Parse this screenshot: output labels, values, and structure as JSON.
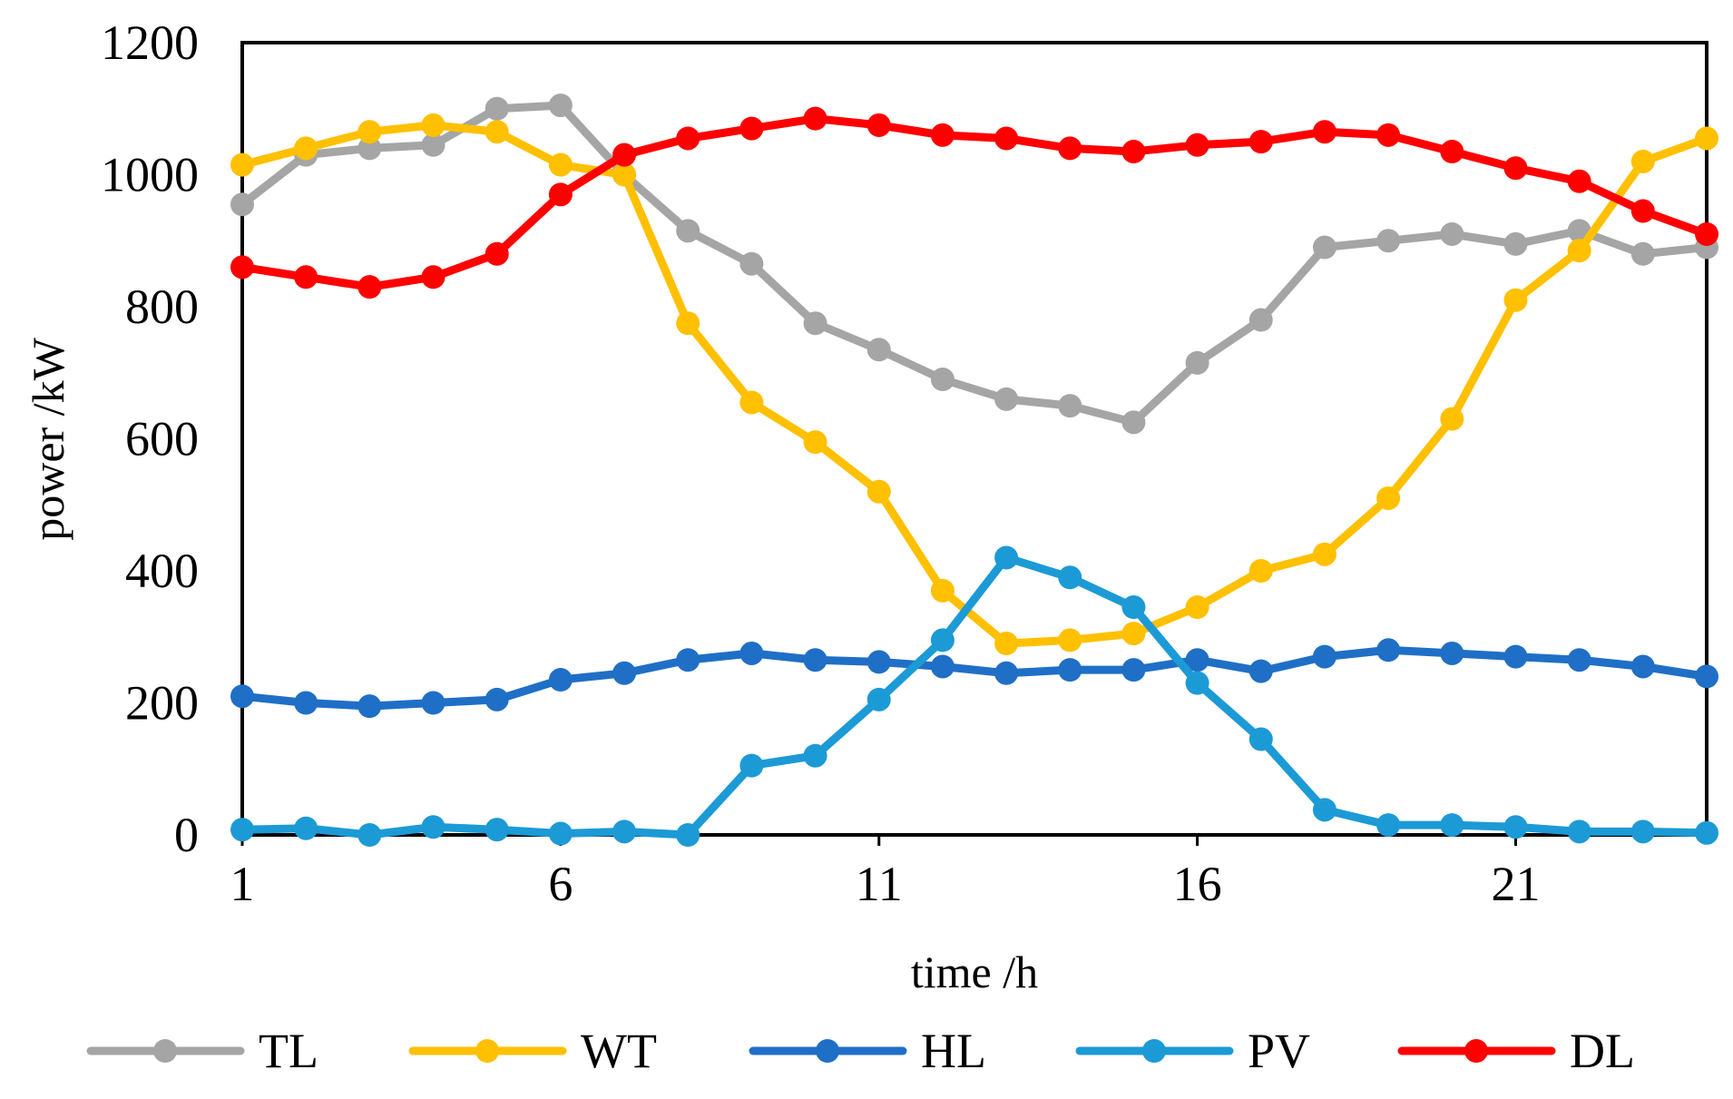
{
  "chart_data": {
    "type": "line",
    "title": "",
    "xlabel": "time /h",
    "ylabel": "power /kW",
    "xlim": [
      1,
      24
    ],
    "ylim": [
      0,
      1200
    ],
    "xticks": [
      1,
      6,
      11,
      16,
      21
    ],
    "xtick_labels": [
      "1",
      "6",
      "11",
      "16",
      "21"
    ],
    "yticks": [
      0,
      200,
      400,
      600,
      800,
      1000,
      1200
    ],
    "ytick_labels": [
      "0",
      "200",
      "400",
      "600",
      "800",
      "1000",
      "1200"
    ],
    "grid": false,
    "legend_position": "bottom",
    "x": [
      1,
      2,
      3,
      4,
      5,
      6,
      7,
      8,
      9,
      10,
      11,
      12,
      13,
      14,
      15,
      16,
      17,
      18,
      19,
      20,
      21,
      22,
      23,
      24
    ],
    "series": [
      {
        "name": "TL",
        "color": "#a5a5a5",
        "values": [
          955,
          1030,
          1040,
          1045,
          1100,
          1105,
          1000,
          915,
          865,
          775,
          735,
          690,
          660,
          650,
          625,
          715,
          780,
          890,
          900,
          910,
          895,
          915,
          880,
          890
        ]
      },
      {
        "name": "WT",
        "color": "#ffc000",
        "values": [
          1015,
          1040,
          1065,
          1075,
          1065,
          1015,
          1000,
          775,
          655,
          595,
          520,
          370,
          290,
          295,
          305,
          345,
          400,
          425,
          510,
          630,
          810,
          885,
          1020,
          1055
        ]
      },
      {
        "name": "HL",
        "color": "#1f6fc6",
        "values": [
          210,
          200,
          195,
          200,
          205,
          235,
          245,
          265,
          275,
          265,
          262,
          255,
          245,
          250,
          250,
          265,
          248,
          270,
          280,
          275,
          270,
          265,
          255,
          240
        ]
      },
      {
        "name": "PV",
        "color": "#1c9ad6",
        "values": [
          8,
          10,
          0,
          12,
          8,
          2,
          5,
          0,
          105,
          120,
          205,
          295,
          420,
          390,
          345,
          230,
          145,
          38,
          15,
          15,
          12,
          5,
          5,
          3
        ]
      },
      {
        "name": "DL",
        "color": "#ff0000",
        "values": [
          860,
          845,
          830,
          845,
          880,
          970,
          1030,
          1055,
          1070,
          1085,
          1075,
          1060,
          1055,
          1040,
          1035,
          1045,
          1050,
          1065,
          1060,
          1035,
          1010,
          990,
          945,
          910
        ]
      }
    ]
  }
}
